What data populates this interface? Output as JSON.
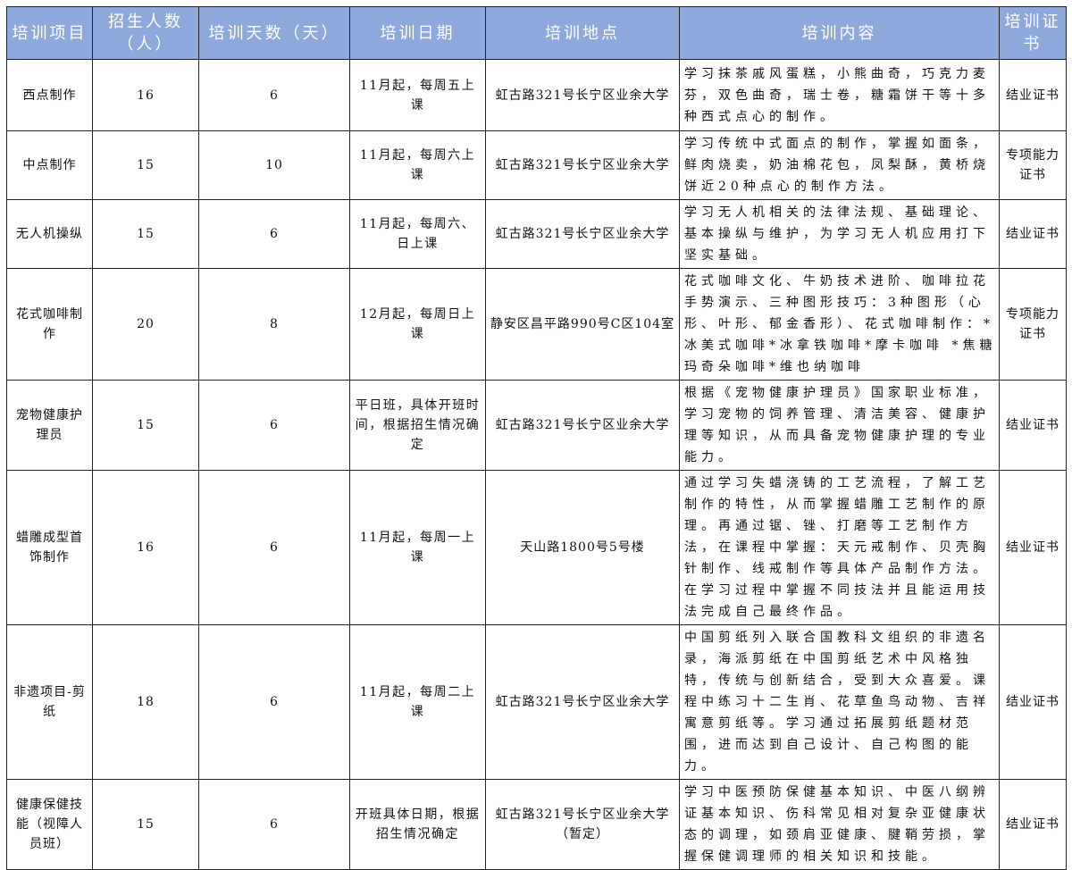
{
  "header_color": "#8EA9DB",
  "headers": [
    "培训项目",
    "招生人数（人）",
    "培训天数（天）",
    "培训日期",
    "培训地点",
    "培训内容",
    "培训证书"
  ],
  "rows": [
    {
      "project": "西点制作",
      "enrollment": "16",
      "days": "6",
      "date": "11月起，每周五上课",
      "location": "虹古路321号长宁区业余大学",
      "content": "学习抹茶戚风蛋糕，小熊曲奇，巧克力麦芬，双色曲奇，瑞士卷，糖霜饼干等十多种西式点心的制作。",
      "certificate": "结业证书"
    },
    {
      "project": "中点制作",
      "enrollment": "15",
      "days": "10",
      "date": "11月起，每周六上课",
      "location": "虹古路321号长宁区业余大学",
      "content": "学习传统中式面点的制作，掌握如面条，鲜肉烧卖，奶油棉花包，凤梨酥，黄桥烧饼近20种点心的制作方法。",
      "certificate": "专项能力证书"
    },
    {
      "project": "无人机操纵",
      "enrollment": "15",
      "days": "6",
      "date": "11月起，每周六、日上课",
      "location": "虹古路321号长宁区业余大学",
      "content": "学习无人机相关的法律法规、基础理论、基本操纵与维护，为学习无人机应用打下坚实基础。",
      "certificate": "结业证书"
    },
    {
      "project": "花式咖啡制作",
      "enrollment": "20",
      "days": "8",
      "date": "12月起，每周日上课",
      "location": "静安区昌平路990号C区104室",
      "content": "花式咖啡文化、牛奶技术进阶、咖啡拉花手势演示、三种图形技巧：3种图形（心形、叶形、郁金香形）、花式咖啡制作：*冰美式咖啡*冰拿铁咖啡*摩卡咖啡 *焦糖玛奇朵咖啡*维也纳咖啡",
      "certificate": "专项能力证书"
    },
    {
      "project": "宠物健康护理员",
      "enrollment": "15",
      "days": "6",
      "date": "平日班，具体开班时间，根据招生情况确定",
      "location": "虹古路321号长宁区业余大学",
      "content": "根据《宠物健康护理员》国家职业标准，学习宠物的饲养管理、清洁美容、健康护理等知识，从而具备宠物健康护理的专业能力。",
      "certificate": "结业证书"
    },
    {
      "project": "蜡雕成型首饰制作",
      "enrollment": "16",
      "days": "6",
      "date": "11月起，每周一上课",
      "location": "天山路1800号5号楼",
      "content": "通过学习失蜡浇铸的工艺流程，了解工艺制作的特性，从而掌握蜡雕工艺制作的原理。再通过锯、锉、打磨等工艺制作方法，在课程中掌握：天元戒制作、贝壳胸针制作、线戒制作等具体产品制作方法。在学习过程中掌握不同技法并且能运用技法完成自己最终作品。",
      "certificate": "结业证书"
    },
    {
      "project": "非遗项目-剪纸",
      "enrollment": "18",
      "days": "6",
      "date": "11月起，每周二上课",
      "location": "虹古路321号长宁区业余大学",
      "content": "中国剪纸列入联合国教科文组织的非遗名录，海派剪纸在中国剪纸艺术中风格独特，传统与创新结合，受到大众喜爱。课程中练习十二生肖、花草鱼鸟动物、吉祥寓意剪纸等。学习通过拓展剪纸题材范围，进而达到自己设计、自己构图的能力。",
      "certificate": "结业证书"
    },
    {
      "project": "健康保健技能（视障人员班）",
      "enrollment": "15",
      "days": "6",
      "date": "开班具体日期，根据招生情况确定",
      "location": "虹古路321号长宁区业余大学（暂定）",
      "content": "学习中医预防保健基本知识、中医八纲辨证基本知识、伤科常见相对复杂亚健康状态的调理，如颈肩亚健康、腱鞘劳损，掌握保健调理师的相关知识和技能。",
      "certificate": "结业证书"
    }
  ]
}
